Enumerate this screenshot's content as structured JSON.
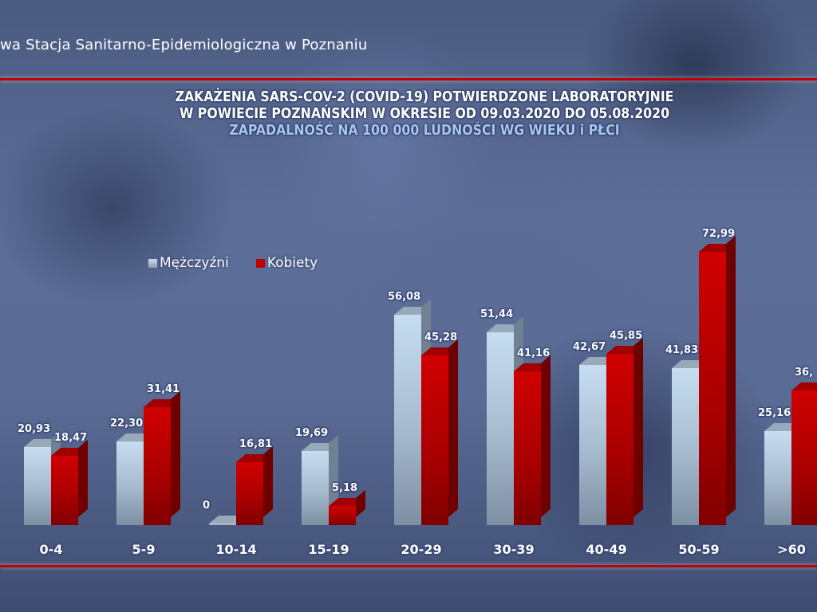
{
  "header": {
    "organization": "wa Stacja Sanitarno-Epidemiologiczna w Poznaniu"
  },
  "title": {
    "line1": "ZAKAŻENIA SARS-COV-2 (COVID-19) POTWIERDZONE LABORATORYJNIE",
    "line2": "W POWIECIE POZNAŃSKIM W OKRESIE OD 09.03.2020 DO 05.08.2020",
    "line3": "ZAPADALNOŚĆ NA 100 000 LUDNOŚCI WG WIEKU i PŁCI"
  },
  "legend": {
    "men": "Mężczyźni",
    "women": "Kobiety"
  },
  "colors": {
    "men": "#c6ddf1",
    "women": "#c00000",
    "rule": "#c00000",
    "subtitle": "#a8c6ee"
  },
  "labels": {
    "men": [
      "20,93",
      "22,30",
      "0",
      "19,69",
      "56,08",
      "51,44",
      "42,67",
      "41,83",
      "25,16"
    ],
    "women": [
      "18,47",
      "31,41",
      "16,81",
      "5,18",
      "45,28",
      "41,16",
      "45,85",
      "72,99",
      "36,"
    ]
  },
  "chart_data": {
    "type": "bar",
    "title": "ZAKAŻENIA SARS-COV-2 (COVID-19) POTWIERDZONE LABORATORYJNIE W POWIECIE POZNAŃSKIM W OKRESIE OD 09.03.2020 DO 05.08.2020",
    "subtitle": "ZAPADALNOŚĆ NA 100 000 LUDNOŚCI WG WIEKU i PŁCI",
    "xlabel": "",
    "ylabel": "",
    "categories": [
      "0-4",
      "5-9",
      "10-14",
      "15-19",
      "20-29",
      "30-39",
      "40-49",
      "50-59",
      ">60"
    ],
    "series": [
      {
        "name": "Mężczyźni",
        "values": [
          20.93,
          22.3,
          0,
          19.69,
          56.08,
          51.44,
          42.67,
          41.83,
          25.16
        ]
      },
      {
        "name": "Kobiety",
        "values": [
          18.47,
          31.41,
          16.81,
          5.18,
          45.28,
          41.16,
          45.85,
          72.99,
          36
        ]
      }
    ],
    "legend_position": "top-left",
    "grid": false,
    "ylim": [
      0,
      75
    ],
    "style": "3d-clustered-bar, data labels on top"
  }
}
